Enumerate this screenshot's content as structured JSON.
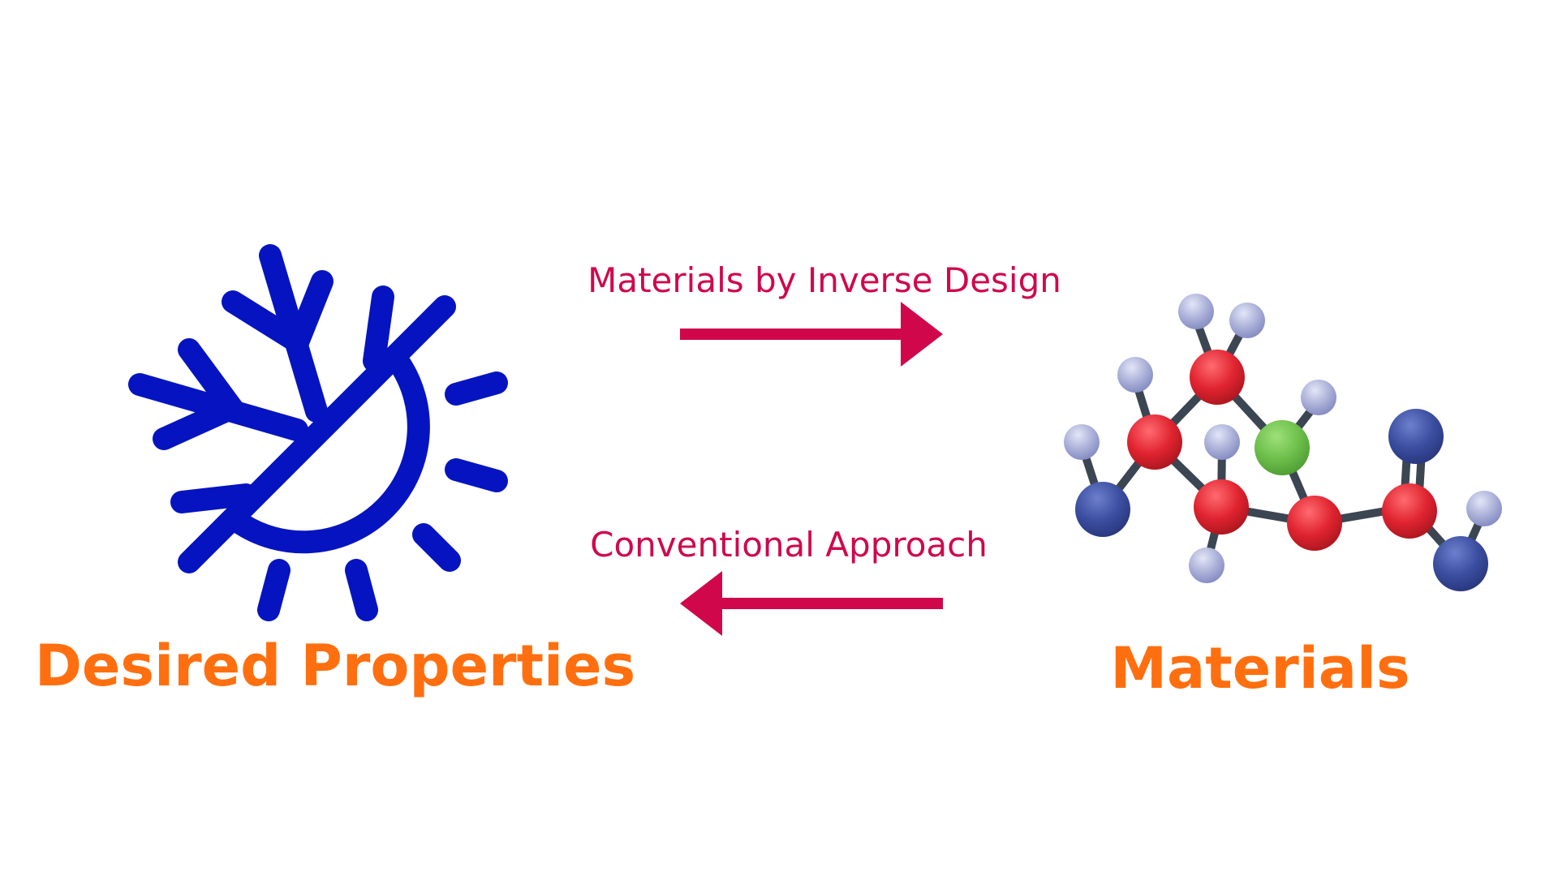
{
  "diagram": {
    "nodes": {
      "left_label": "Desired Properties",
      "right_label": "Materials"
    },
    "edges": {
      "forward_label": "Materials by Inverse Design",
      "backward_label": "Conventional Approach"
    },
    "icons": {
      "left": "snowflake-sun-icon",
      "right": "molecule-icon"
    },
    "colors": {
      "label_orange": "#ff6f0f",
      "arrow_crimson": "#d0084b",
      "icon_blue": "#0514c0",
      "atom_red": "#e02430",
      "atom_navy": "#3b4ea0",
      "atom_green": "#6dbf4b",
      "atom_lavender": "#aab0d8",
      "bond_gray": "#3b4652"
    }
  }
}
